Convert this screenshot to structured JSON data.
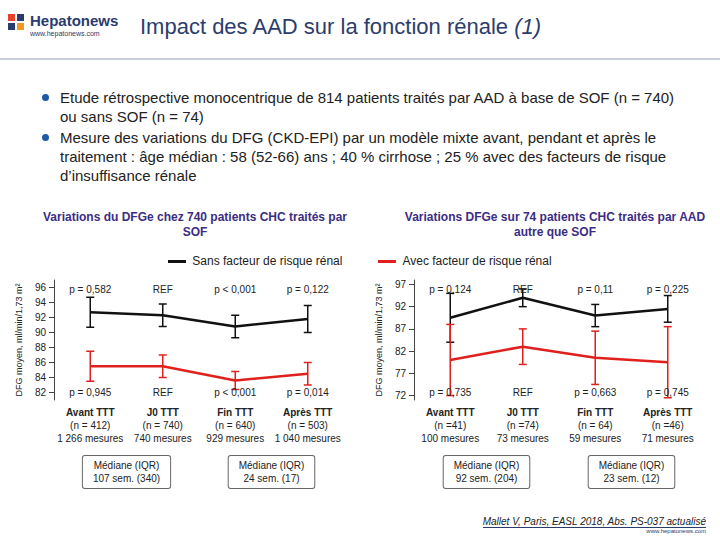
{
  "header": {
    "logo": "Hepatonews",
    "url": "www.hepatonews.com",
    "title": "Impact des AAD sur la fonction rénale",
    "title_note": "(1)"
  },
  "bullets": [
    "Etude rétrospective monocentrique de 814 patients traités par AAD à base de SOF (n = 740) ou sans SOF (n = 74)",
    "Mesure des variations du DFG (CKD-EPI) par un modèle mixte avant, pendant et après le traitement : âge médian : 58 (52-66) ans ; 40 % cirrhose ; 25 % avec des facteurs de risque d’insuffisance rénale"
  ],
  "chart_data": [
    {
      "type": "line",
      "title": "Variations du DFGe chez 740 patients CHC traités par SOF",
      "y_label": "DFG moyen, ml/min/1,73 m²",
      "categories": [
        "Avant TTT\n(n = 412)\n1 266 mesures",
        "J0 TTT\n(n = 740)\n740 mesures",
        "Fin TTT\n(n = 640)\n929 mesures",
        "Après TTT\n(n = 503)\n1 040 mesures"
      ],
      "series": [
        {
          "name": "Sans facteur de risque rénal",
          "color": "#111111",
          "values": [
            92.7,
            92.3,
            90.8,
            91.8
          ],
          "error": [
            2,
            1.5,
            1.5,
            1.8
          ]
        },
        {
          "name": "Avec facteur de risque rénal",
          "color": "#e0201c",
          "values": [
            85.5,
            85.5,
            83.6,
            84.5
          ],
          "error": [
            2,
            1.5,
            1.2,
            1.5
          ]
        }
      ],
      "p_values": {
        "top": [
          "p = 0,582",
          "REF",
          "p < 0,001",
          "p = 0,122"
        ],
        "bottom": [
          "p = 0,945",
          "REF",
          "p < 0,001",
          "p = 0,014"
        ]
      },
      "medians": [
        "Médiane (IQR)\n107 sem. (340)",
        "Médiane (IQR)\n24 sem. (17)"
      ],
      "ylim": [
        81,
        97
      ],
      "yticks": [
        82,
        84,
        86,
        88,
        90,
        92,
        94,
        96
      ],
      "grid": false
    },
    {
      "type": "line",
      "title": "Variations DFGe sur 74 patients CHC traités par AAD autre que SOF",
      "y_label": "DFG moyen, ml/min/1,73 m²",
      "categories": [
        "Avant TTT\n(n =41)\n100 mesures",
        "J0 TTT\n(n =74)\n73 mesures",
        "Fin TTT\n(n = 64)\n59 mesures",
        "Après TTT\n(n =46)\n71 mesures"
      ],
      "series": [
        {
          "name": "Sans facteur de risque rénal",
          "color": "#111111",
          "values": [
            89.5,
            94,
            90,
            91.5
          ],
          "error": [
            5.5,
            2,
            2.5,
            3
          ]
        },
        {
          "name": "Avec facteur de risque rénal",
          "color": "#e0201c",
          "values": [
            80,
            83,
            80.5,
            79.5
          ],
          "error": [
            8,
            4,
            6,
            8
          ]
        }
      ],
      "p_values": {
        "top": [
          "p = 0,124",
          "REF",
          "p = 0,11",
          "p = 0,225"
        ],
        "bottom": [
          "p = 0,735",
          "REF",
          "p = 0,663",
          "p = 0,745"
        ]
      },
      "medians": [
        "Médiane (IQR)\n92 sem. (204)",
        "Médiane (IQR)\n23 sem. (12)"
      ],
      "ylim": [
        71,
        98
      ],
      "yticks": [
        72,
        77,
        82,
        87,
        92,
        97
      ],
      "grid": false
    }
  ],
  "footer": {
    "citation": "Mallet V, Paris, EASL 2018, Abs. PS-037 actualisé",
    "url": "www.hepatonews.com"
  }
}
